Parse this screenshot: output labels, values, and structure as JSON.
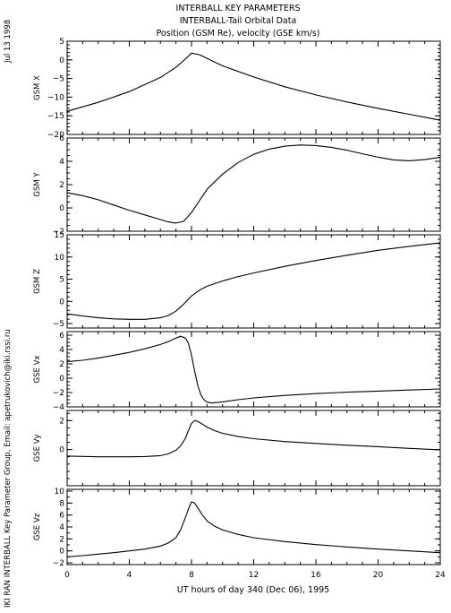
{
  "header": {
    "title_lines": [
      "INTERBALL KEY PARAMETERS",
      "INTERBALL-Tail Orbital Data",
      "Position (GSM Re), velocity (GSE km/s)"
    ],
    "date_stamp": "Jul 13 1998",
    "credit": "IKI RAN INTERBALL Key Parameter Group, Email: apetrukovich@iki.rssi.ru"
  },
  "x_axis": {
    "label": "UT hours of day 340 (Dec 06), 1995",
    "range": [
      0,
      24
    ],
    "ticks": [
      0,
      4,
      8,
      12,
      16,
      20,
      24
    ],
    "minor_step": 1
  },
  "style": {
    "line_color": "#000000",
    "frame_color": "#000000",
    "background": "#ffffff"
  },
  "chart_data": [
    {
      "type": "line",
      "ylabel": "GSM X",
      "ylim": [
        -20,
        5
      ],
      "yticks": [
        5,
        0,
        -5,
        -10,
        -15,
        -20
      ],
      "yminor": 1,
      "x": [
        0,
        2,
        4,
        6,
        7,
        7.5,
        8,
        8.5,
        9,
        10,
        12,
        14,
        16,
        18,
        20,
        22,
        24
      ],
      "values": [
        -13.8,
        -11.4,
        -8.5,
        -4.7,
        -2.0,
        -0.2,
        1.8,
        1.4,
        0.4,
        -1.6,
        -4.6,
        -7.2,
        -9.4,
        -11.3,
        -13.0,
        -14.6,
        -16.2
      ]
    },
    {
      "type": "line",
      "ylabel": "GSM Y",
      "ylim": [
        -2,
        6
      ],
      "yticks": [
        6,
        4,
        2,
        0,
        -2
      ],
      "yminor": 0.5,
      "x": [
        0,
        1,
        2,
        3,
        4,
        5,
        6,
        6.5,
        7,
        7.5,
        8,
        8.5,
        9,
        10,
        11,
        12,
        13,
        14,
        15,
        16,
        17,
        18,
        19,
        20,
        21,
        22,
        23,
        24
      ],
      "values": [
        1.3,
        1.05,
        0.7,
        0.25,
        -0.2,
        -0.6,
        -1.0,
        -1.2,
        -1.3,
        -1.15,
        -0.4,
        0.6,
        1.6,
        2.9,
        3.9,
        4.6,
        5.05,
        5.3,
        5.4,
        5.35,
        5.2,
        4.95,
        4.65,
        4.35,
        4.12,
        4.05,
        4.15,
        4.35
      ]
    },
    {
      "type": "line",
      "ylabel": "GSM Z",
      "ylim": [
        -6,
        15
      ],
      "yticks": [
        15,
        10,
        5,
        0,
        -5
      ],
      "yminor": 1,
      "x": [
        0,
        1,
        2,
        3,
        4,
        5,
        6,
        6.5,
        7,
        7.5,
        8,
        8.5,
        9,
        10,
        11,
        12,
        14,
        16,
        18,
        20,
        22,
        24
      ],
      "values": [
        -2.8,
        -3.3,
        -3.7,
        -3.95,
        -4.05,
        -4.05,
        -3.7,
        -3.2,
        -2.2,
        -0.6,
        1.2,
        2.5,
        3.4,
        4.6,
        5.6,
        6.4,
        7.9,
        9.2,
        10.4,
        11.5,
        12.4,
        13.2
      ]
    },
    {
      "type": "line",
      "ylabel": "GSE Vx",
      "ylim": [
        -4,
        6.5
      ],
      "yticks": [
        6,
        4,
        2,
        0,
        -2,
        -4
      ],
      "yminor": 0.5,
      "x": [
        0,
        1,
        2,
        3,
        4,
        5,
        6,
        6.5,
        7,
        7.3,
        7.6,
        7.8,
        8.0,
        8.2,
        8.4,
        8.6,
        8.8,
        9.0,
        9.3,
        9.6,
        10,
        11,
        12,
        14,
        16,
        18,
        20,
        22,
        24
      ],
      "values": [
        2.3,
        2.5,
        2.8,
        3.2,
        3.6,
        4.1,
        4.7,
        5.1,
        5.6,
        5.85,
        5.6,
        4.9,
        3.2,
        1.0,
        -1.0,
        -2.3,
        -3.0,
        -3.35,
        -3.45,
        -3.4,
        -3.3,
        -3.0,
        -2.75,
        -2.4,
        -2.15,
        -1.95,
        -1.8,
        -1.65,
        -1.5
      ]
    },
    {
      "type": "line",
      "ylabel": "GSE Vy",
      "ylim": [
        -2.5,
        2.7
      ],
      "yticks": [
        2,
        0
      ],
      "yminor": 0.5,
      "x": [
        0,
        2,
        4,
        5,
        6,
        6.5,
        7,
        7.3,
        7.6,
        7.8,
        8.0,
        8.2,
        8.4,
        8.7,
        9.0,
        9.5,
        10,
        11,
        12,
        14,
        16,
        18,
        20,
        22,
        24
      ],
      "values": [
        -0.45,
        -0.5,
        -0.5,
        -0.48,
        -0.42,
        -0.3,
        -0.05,
        0.25,
        0.75,
        1.3,
        1.8,
        2.0,
        1.95,
        1.75,
        1.55,
        1.3,
        1.12,
        0.9,
        0.75,
        0.55,
        0.42,
        0.3,
        0.2,
        0.08,
        -0.02
      ]
    },
    {
      "type": "line",
      "ylabel": "GSE Vz",
      "ylim": [
        -2.3,
        10.3
      ],
      "yticks": [
        10,
        8,
        6,
        4,
        2,
        0,
        -2
      ],
      "yminor": 1,
      "x": [
        0,
        1,
        2,
        3,
        4,
        5,
        6,
        6.5,
        7,
        7.3,
        7.6,
        7.8,
        8.0,
        8.2,
        8.4,
        8.7,
        9.0,
        9.5,
        10,
        11,
        12,
        14,
        16,
        18,
        20,
        22,
        24
      ],
      "values": [
        -1.0,
        -0.8,
        -0.55,
        -0.3,
        0.0,
        0.3,
        0.8,
        1.3,
        2.2,
        3.5,
        5.5,
        7.0,
        8.2,
        8.0,
        7.2,
        6.0,
        5.0,
        4.1,
        3.5,
        2.75,
        2.2,
        1.55,
        1.05,
        0.65,
        0.3,
        0.0,
        -0.3
      ]
    }
  ]
}
